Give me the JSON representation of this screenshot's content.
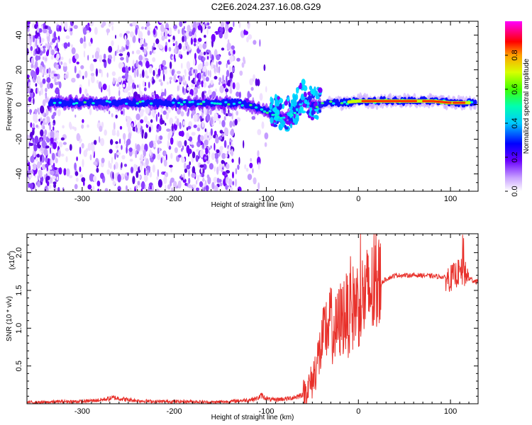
{
  "page_title": "C2E6.2024.237.16.08.G29",
  "chart_data": [
    {
      "type": "heatmap",
      "xlabel": "Height of straight line (km)",
      "ylabel": "Frequency (Hz)",
      "xlim": [
        -360,
        130
      ],
      "ylim": [
        -50,
        48
      ],
      "xticks": [
        -300,
        -200,
        -100,
        0,
        100
      ],
      "yticks": [
        -40,
        -20,
        0,
        20,
        40
      ],
      "colorbar": {
        "label": "Normalized spectral amplitude",
        "range": [
          0.0,
          1.0
        ],
        "ticks": [
          0.0,
          0.2,
          0.4,
          0.6,
          0.8
        ],
        "tick_labels": [
          "0.0",
          "0.2",
          "0.4",
          "0.6",
          "0.8"
        ],
        "colormap": [
          "#ffffff",
          "#e8c8ff",
          "#7a00ff",
          "#0000ff",
          "#00ffff",
          "#00ff00",
          "#ffff00",
          "#ff0000",
          "#ff00ff"
        ]
      },
      "ridge": {
        "x": [
          -330,
          -300,
          -250,
          -200,
          -150,
          -130,
          -110,
          -100,
          -90,
          -80,
          -70,
          -60,
          -50,
          -40,
          -30,
          -20,
          0,
          20,
          50,
          80,
          100,
          125
        ],
        "y": [
          1,
          1,
          1,
          1,
          1,
          1,
          -2,
          -4,
          -6,
          -8,
          -5,
          3,
          -1,
          0,
          1,
          1,
          2,
          2,
          2,
          2,
          1,
          1
        ]
      }
    },
    {
      "type": "line",
      "xlabel": "Height of straight line (km)",
      "ylabel": "SNR (10 * v/v)",
      "y_scale_label": "(x10",
      "y_scale_exp": "4",
      "y_scale_close": ")",
      "xlim": [
        -360,
        130
      ],
      "ylim": [
        0.0,
        2.25
      ],
      "xticks": [
        -300,
        -200,
        -100,
        0,
        100
      ],
      "yticks": [
        0.5,
        1.0,
        1.5,
        2.0
      ],
      "ytick_labels": [
        "0.5",
        "1.0",
        "1.5",
        "2.0"
      ],
      "series": [
        {
          "color": "#e8302a",
          "x": [
            -360,
            -340,
            -320,
            -300,
            -280,
            -265,
            -255,
            -240,
            -220,
            -200,
            -180,
            -160,
            -140,
            -120,
            -110,
            -105,
            -102,
            -95,
            -85,
            -75,
            -65,
            -58,
            -50,
            -45,
            -40,
            -35,
            -30,
            -25,
            -20,
            -15,
            -10,
            -5,
            0,
            5,
            10,
            20,
            30,
            40,
            50,
            60,
            70,
            80,
            90,
            100,
            105,
            110,
            115,
            120,
            125,
            130
          ],
          "y": [
            0.02,
            0.02,
            0.03,
            0.03,
            0.05,
            0.08,
            0.06,
            0.04,
            0.03,
            0.03,
            0.03,
            0.02,
            0.03,
            0.05,
            0.07,
            0.11,
            0.08,
            0.05,
            0.06,
            0.07,
            0.1,
            0.15,
            0.3,
            0.55,
            0.75,
            1.0,
            1.05,
            0.95,
            1.1,
            1.2,
            1.15,
            1.3,
            1.35,
            1.4,
            1.45,
            1.55,
            1.65,
            1.7,
            1.7,
            1.7,
            1.7,
            1.69,
            1.68,
            1.66,
            1.7,
            1.75,
            1.72,
            1.66,
            1.63,
            1.62
          ]
        }
      ]
    }
  ]
}
